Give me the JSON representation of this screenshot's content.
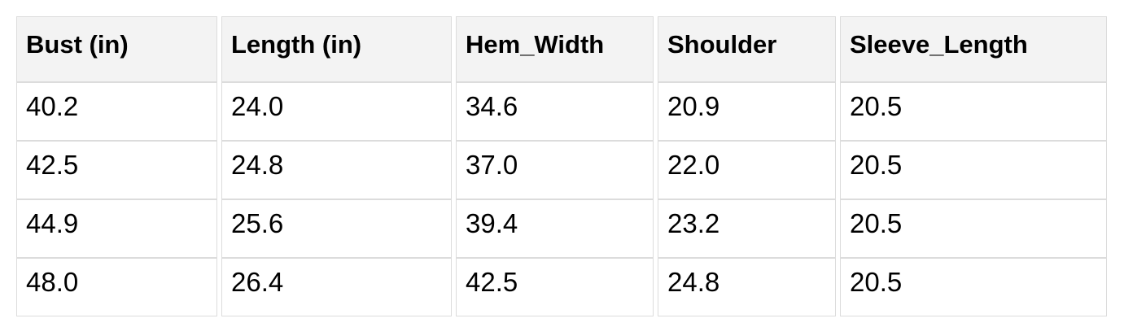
{
  "chart_data": {
    "type": "table",
    "title": "",
    "columns": [
      "Bust (in)",
      "Length (in)",
      "Hem_Width",
      "Shoulder",
      "Sleeve_Length"
    ],
    "rows": [
      [
        "40.2",
        "24.0",
        "34.6",
        "20.9",
        "20.5"
      ],
      [
        "42.5",
        "24.8",
        "37.0",
        "22.0",
        "20.5"
      ],
      [
        "44.9",
        "25.6",
        "39.4",
        "23.2",
        "20.5"
      ],
      [
        "48.0",
        "26.4",
        "42.5",
        "24.8",
        "20.5"
      ]
    ]
  },
  "colors": {
    "header_bg": "#f3f3f3",
    "border": "#dcdcdc",
    "text": "#000000",
    "cell_bg": "#ffffff"
  }
}
